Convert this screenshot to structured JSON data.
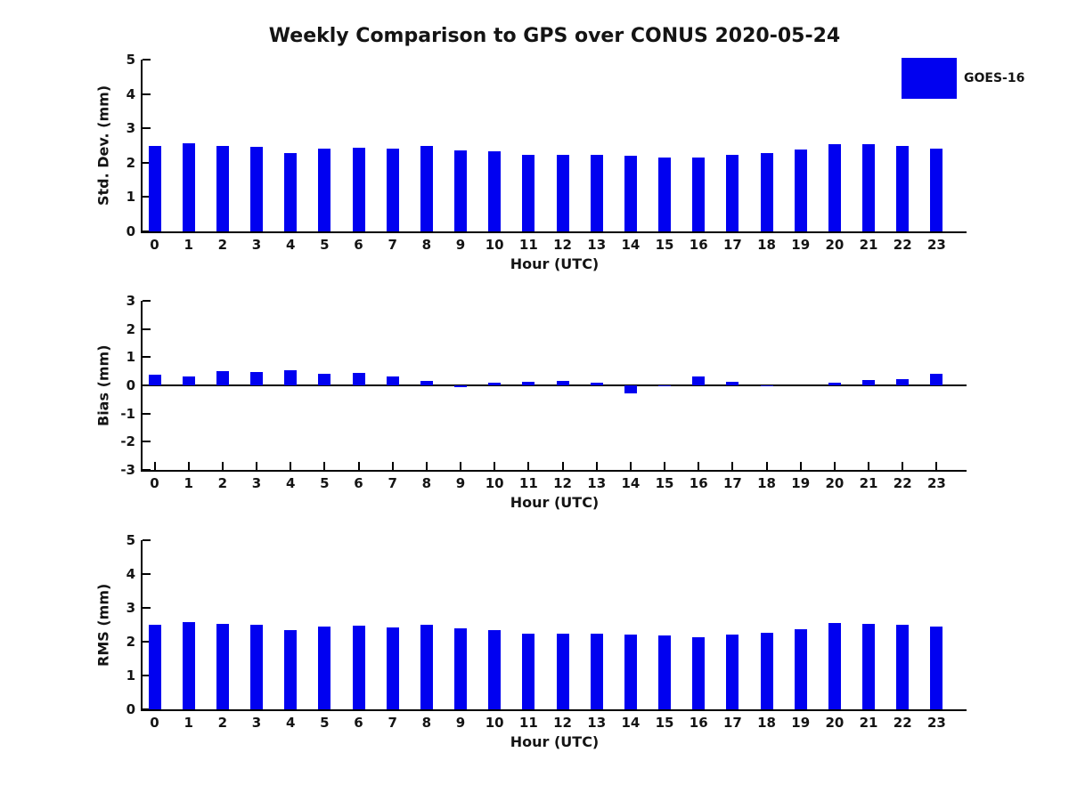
{
  "title": "Weekly Comparison to GPS over CONUS 2020-05-24",
  "legend": {
    "label": "GOES-16",
    "color": "#0101f0"
  },
  "colors": {
    "bar_fill": "#0101f0",
    "axis": "#000000",
    "background": "#ffffff"
  },
  "chart_data": [
    {
      "type": "bar",
      "name": "std-dev",
      "title": "",
      "xlabel": "Hour (UTC)",
      "ylabel": "Std. Dev. (mm)",
      "ylim": [
        0,
        5
      ],
      "yticks": [
        0,
        1,
        2,
        3,
        4,
        5
      ],
      "grid": false,
      "legend_position": "upper-right-outside",
      "categories": [
        "0",
        "1",
        "2",
        "3",
        "4",
        "5",
        "6",
        "7",
        "8",
        "9",
        "10",
        "11",
        "12",
        "13",
        "14",
        "15",
        "16",
        "17",
        "18",
        "19",
        "20",
        "21",
        "22",
        "23"
      ],
      "series": [
        {
          "name": "GOES-16",
          "values": [
            2.48,
            2.57,
            2.5,
            2.46,
            2.28,
            2.41,
            2.44,
            2.41,
            2.5,
            2.37,
            2.32,
            2.24,
            2.24,
            2.24,
            2.21,
            2.16,
            2.14,
            2.22,
            2.29,
            2.39,
            2.53,
            2.53,
            2.49,
            2.4
          ]
        }
      ]
    },
    {
      "type": "bar",
      "name": "bias",
      "title": "",
      "xlabel": "Hour (UTC)",
      "ylabel": "Bias (mm)",
      "ylim": [
        -3,
        3
      ],
      "yticks": [
        -3,
        -2,
        -1,
        0,
        1,
        2,
        3
      ],
      "grid": false,
      "categories": [
        "0",
        "1",
        "2",
        "3",
        "4",
        "5",
        "6",
        "7",
        "8",
        "9",
        "10",
        "11",
        "12",
        "13",
        "14",
        "15",
        "16",
        "17",
        "18",
        "19",
        "20",
        "21",
        "22",
        "23"
      ],
      "series": [
        {
          "name": "GOES-16",
          "values": [
            0.39,
            0.33,
            0.49,
            0.46,
            0.55,
            0.42,
            0.43,
            0.31,
            0.15,
            -0.07,
            0.11,
            0.14,
            0.17,
            0.08,
            -0.28,
            -0.04,
            0.32,
            0.13,
            -0.03,
            0.0,
            0.09,
            0.18,
            0.23,
            0.42
          ]
        }
      ]
    },
    {
      "type": "bar",
      "name": "rms",
      "title": "",
      "xlabel": "Hour (UTC)",
      "ylabel": "RMS (mm)",
      "ylim": [
        0,
        5
      ],
      "yticks": [
        0,
        1,
        2,
        3,
        4,
        5
      ],
      "grid": false,
      "categories": [
        "0",
        "1",
        "2",
        "3",
        "4",
        "5",
        "6",
        "7",
        "8",
        "9",
        "10",
        "11",
        "12",
        "13",
        "14",
        "15",
        "16",
        "17",
        "18",
        "19",
        "20",
        "21",
        "22",
        "23"
      ],
      "series": [
        {
          "name": "GOES-16",
          "values": [
            2.5,
            2.57,
            2.53,
            2.5,
            2.34,
            2.45,
            2.47,
            2.43,
            2.5,
            2.4,
            2.34,
            2.24,
            2.24,
            2.23,
            2.22,
            2.18,
            2.14,
            2.21,
            2.27,
            2.38,
            2.54,
            2.52,
            2.49,
            2.45
          ]
        }
      ]
    }
  ]
}
